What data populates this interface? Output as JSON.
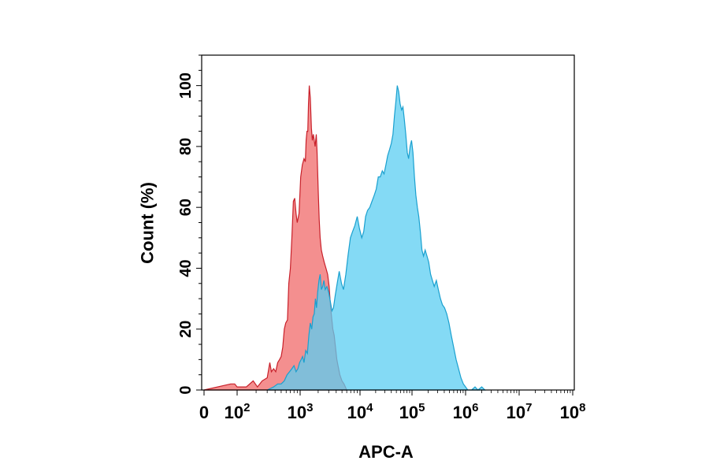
{
  "chart_data": {
    "type": "area",
    "xlabel": "APC-A",
    "ylabel": "Count  (%)",
    "x_scale": "log (biexponential, with 0)",
    "ylim": [
      0,
      110
    ],
    "grid": false,
    "x_ticks": [
      {
        "value": 0,
        "base": "0",
        "exp": ""
      },
      {
        "value": 100,
        "base": "10",
        "exp": "2"
      },
      {
        "value": 1000,
        "base": "10",
        "exp": "3"
      },
      {
        "value": 10000,
        "base": "10",
        "exp": "4"
      },
      {
        "value": 100000,
        "base": "10",
        "exp": "5"
      },
      {
        "value": 1000000,
        "base": "10",
        "exp": "6"
      },
      {
        "value": 10000000,
        "base": "10",
        "exp": "7"
      },
      {
        "value": 100000000,
        "base": "10",
        "exp": "8"
      }
    ],
    "y_ticks": [
      0,
      20,
      40,
      60,
      80,
      100
    ],
    "series": [
      {
        "color": "#f06a6a",
        "stroke": "#c8202a",
        "points": [
          [
            0,
            0
          ],
          [
            40,
            2
          ],
          [
            70,
            2
          ],
          [
            100,
            1
          ],
          [
            140,
            1
          ],
          [
            180,
            3
          ],
          [
            210,
            1
          ],
          [
            250,
            3
          ],
          [
            300,
            4
          ],
          [
            330,
            9
          ],
          [
            350,
            6
          ],
          [
            380,
            7
          ],
          [
            410,
            6
          ],
          [
            440,
            9
          ],
          [
            470,
            10
          ],
          [
            500,
            11
          ],
          [
            530,
            14
          ],
          [
            560,
            20
          ],
          [
            590,
            22
          ],
          [
            630,
            23
          ],
          [
            660,
            35
          ],
          [
            700,
            40
          ],
          [
            740,
            50
          ],
          [
            780,
            62
          ],
          [
            820,
            63
          ],
          [
            860,
            58
          ],
          [
            900,
            55
          ],
          [
            960,
            58
          ],
          [
            1020,
            70
          ],
          [
            1090,
            74
          ],
          [
            1160,
            76
          ],
          [
            1220,
            75
          ],
          [
            1260,
            82
          ],
          [
            1300,
            85
          ],
          [
            1340,
            85
          ],
          [
            1380,
            94
          ],
          [
            1420,
            100
          ],
          [
            1480,
            96
          ],
          [
            1540,
            86
          ],
          [
            1600,
            82
          ],
          [
            1660,
            84
          ],
          [
            1720,
            82
          ],
          [
            1780,
            80
          ],
          [
            1860,
            84
          ],
          [
            1920,
            78
          ],
          [
            2000,
            66
          ],
          [
            2080,
            56
          ],
          [
            2160,
            50
          ],
          [
            2260,
            46
          ],
          [
            2380,
            44
          ],
          [
            2520,
            42
          ],
          [
            2700,
            40
          ],
          [
            2880,
            38
          ],
          [
            3050,
            34
          ],
          [
            3200,
            28
          ],
          [
            3350,
            24
          ],
          [
            3520,
            20
          ],
          [
            3700,
            18
          ],
          [
            3900,
            14
          ],
          [
            4100,
            10
          ],
          [
            4300,
            8
          ],
          [
            4600,
            5
          ],
          [
            5000,
            3
          ],
          [
            5400,
            2
          ],
          [
            6000,
            0
          ]
        ]
      },
      {
        "color": "#5bcdf2",
        "stroke": "#1aa0cf",
        "points": [
          [
            300,
            0
          ],
          [
            380,
            1
          ],
          [
            440,
            2
          ],
          [
            500,
            2
          ],
          [
            560,
            3
          ],
          [
            620,
            5
          ],
          [
            680,
            6
          ],
          [
            740,
            7
          ],
          [
            800,
            8
          ],
          [
            860,
            6
          ],
          [
            920,
            7
          ],
          [
            980,
            9
          ],
          [
            1040,
            10
          ],
          [
            1100,
            11
          ],
          [
            1160,
            9
          ],
          [
            1240,
            13
          ],
          [
            1320,
            12
          ],
          [
            1400,
            18
          ],
          [
            1480,
            22
          ],
          [
            1560,
            20
          ],
          [
            1640,
            24
          ],
          [
            1720,
            25
          ],
          [
            1800,
            30
          ],
          [
            1880,
            27
          ],
          [
            1960,
            32
          ],
          [
            2060,
            36
          ],
          [
            2160,
            38
          ],
          [
            2260,
            33
          ],
          [
            2380,
            34
          ],
          [
            2500,
            36
          ],
          [
            2620,
            33
          ],
          [
            2800,
            34
          ],
          [
            3000,
            32
          ],
          [
            3200,
            29
          ],
          [
            3400,
            26
          ],
          [
            3600,
            27
          ],
          [
            3850,
            31
          ],
          [
            4150,
            35
          ],
          [
            4500,
            39
          ],
          [
            4900,
            35
          ],
          [
            5300,
            33
          ],
          [
            5800,
            38
          ],
          [
            6300,
            44
          ],
          [
            6900,
            50
          ],
          [
            7500,
            52
          ],
          [
            8200,
            54
          ],
          [
            9000,
            57
          ],
          [
            9800,
            53
          ],
          [
            10800,
            50
          ],
          [
            11800,
            52
          ],
          [
            12800,
            57
          ],
          [
            14000,
            59
          ],
          [
            15400,
            60
          ],
          [
            17000,
            62
          ],
          [
            18800,
            64
          ],
          [
            20500,
            66
          ],
          [
            22500,
            70
          ],
          [
            24500,
            70
          ],
          [
            26800,
            72
          ],
          [
            29000,
            71
          ],
          [
            31500,
            74
          ],
          [
            34000,
            77
          ],
          [
            37000,
            79
          ],
          [
            40000,
            81
          ],
          [
            43000,
            84
          ],
          [
            46000,
            90
          ],
          [
            49000,
            95
          ],
          [
            52000,
            100
          ],
          [
            55500,
            98
          ],
          [
            59000,
            94
          ],
          [
            63000,
            92
          ],
          [
            67000,
            93
          ],
          [
            71000,
            89
          ],
          [
            76000,
            84
          ],
          [
            81000,
            78
          ],
          [
            86000,
            76
          ],
          [
            92000,
            80
          ],
          [
            98000,
            82
          ],
          [
            104000,
            78
          ],
          [
            111000,
            70
          ],
          [
            118000,
            64
          ],
          [
            126000,
            60
          ],
          [
            134000,
            57
          ],
          [
            143000,
            52
          ],
          [
            153000,
            46
          ],
          [
            164000,
            44
          ],
          [
            176000,
            46
          ],
          [
            190000,
            44
          ],
          [
            205000,
            42
          ],
          [
            222000,
            38
          ],
          [
            240000,
            36
          ],
          [
            260000,
            34
          ],
          [
            285000,
            36
          ],
          [
            310000,
            33
          ],
          [
            340000,
            30
          ],
          [
            370000,
            28
          ],
          [
            405000,
            27
          ],
          [
            445000,
            25
          ],
          [
            490000,
            22
          ],
          [
            540000,
            18
          ],
          [
            600000,
            14
          ],
          [
            665000,
            10
          ],
          [
            740000,
            7
          ],
          [
            820000,
            4
          ],
          [
            910000,
            2
          ],
          [
            1000000,
            1
          ],
          [
            1100000,
            0
          ],
          [
            1300000,
            0
          ],
          [
            1500000,
            1
          ],
          [
            1700000,
            0
          ],
          [
            2000000,
            1
          ],
          [
            2300000,
            0
          ]
        ]
      }
    ]
  }
}
